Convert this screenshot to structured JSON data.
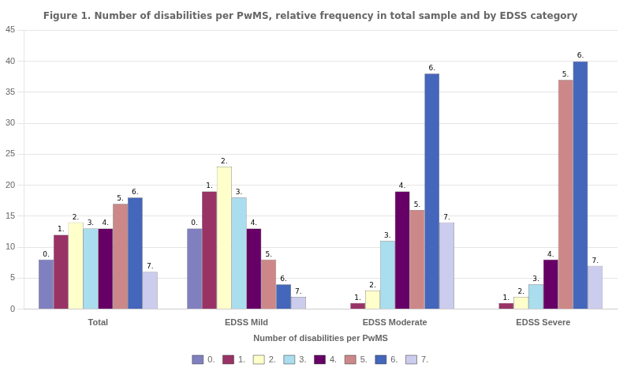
{
  "chart_data": {
    "type": "bar",
    "title": "Figure 1. Number of disabilities per PwMS, relative frequency in total sample and by EDSS category",
    "xlabel": "Number of disabilities per PwMS",
    "categories": [
      "Total",
      "EDSS Mild",
      "EDSS Moderate",
      "EDSS Severe"
    ],
    "series": [
      {
        "name": "0.",
        "color": "#8080c0",
        "values": [
          8,
          13,
          0,
          0
        ]
      },
      {
        "name": "1.",
        "color": "#993366",
        "values": [
          12,
          19,
          1,
          1
        ]
      },
      {
        "name": "2.",
        "color": "#ffffcc",
        "values": [
          14,
          23,
          3,
          2
        ]
      },
      {
        "name": "3.",
        "color": "#aaddee",
        "values": [
          13,
          18,
          11,
          4
        ]
      },
      {
        "name": "4.",
        "color": "#660066",
        "values": [
          13,
          13,
          19,
          8
        ]
      },
      {
        "name": "5.",
        "color": "#cc8888",
        "values": [
          17,
          8,
          16,
          37
        ]
      },
      {
        "name": "6.",
        "color": "#4466bb",
        "values": [
          18,
          4,
          38,
          40
        ]
      },
      {
        "name": "7.",
        "color": "#ccccee",
        "values": [
          6,
          2,
          14,
          7
        ]
      }
    ],
    "annotations": [
      {
        "text": "0.",
        "x": "Total",
        "series": "0."
      },
      {
        "text": "0.",
        "x": "EDSS Mild",
        "series": "0."
      },
      {
        "text": "1.",
        "x": "Total",
        "series": "1."
      },
      {
        "text": "1.",
        "x": "EDSS Mild",
        "series": "1."
      },
      {
        "text": "1.",
        "x": "EDSS Moderate",
        "series": "1."
      },
      {
        "text": "1.",
        "x": "EDSS Severe",
        "series": "1."
      },
      {
        "text": "2.",
        "x": "Total",
        "series": "2."
      },
      {
        "text": "2.",
        "x": "EDSS Mild",
        "series": "2."
      },
      {
        "text": "2.",
        "x": "EDSS Moderate",
        "series": "2."
      },
      {
        "text": "2.",
        "x": "EDSS Severe",
        "series": "2."
      },
      {
        "text": "3.",
        "x": "Total",
        "series": "3."
      },
      {
        "text": "3.",
        "x": "EDSS Mild",
        "series": "3."
      },
      {
        "text": "3.",
        "x": "EDSS Moderate",
        "series": "3."
      },
      {
        "text": "3.",
        "x": "EDSS Severe",
        "series": "3."
      },
      {
        "text": "4.",
        "x": "Total",
        "series": "4."
      },
      {
        "text": "4.",
        "x": "EDSS Mild",
        "series": "4."
      },
      {
        "text": "4.",
        "x": "EDSS Moderate",
        "series": "4."
      },
      {
        "text": "4.",
        "x": "EDSS Severe",
        "series": "4."
      },
      {
        "text": "5.",
        "x": "Total",
        "series": "5."
      },
      {
        "text": "5.",
        "x": "EDSS Mild",
        "series": "5."
      },
      {
        "text": "5.",
        "x": "EDSS Moderate",
        "series": "5."
      },
      {
        "text": "5.",
        "x": "EDSS Severe",
        "series": "5."
      },
      {
        "text": "6.",
        "x": "Total",
        "series": "6."
      },
      {
        "text": "6.",
        "x": "EDSS Mild",
        "series": "6."
      },
      {
        "text": "6.",
        "x": "EDSS Moderate",
        "series": "6."
      },
      {
        "text": "6.",
        "x": "EDSS Severe",
        "series": "6."
      },
      {
        "text": "7.",
        "x": "Total",
        "series": "7."
      },
      {
        "text": "7.",
        "x": "EDSS Mild",
        "series": "7."
      },
      {
        "text": "7.",
        "x": "EDSS Moderate",
        "series": "7."
      },
      {
        "text": "7.",
        "x": "EDSS Severe",
        "series": "7."
      }
    ],
    "ylim": [
      0,
      45
    ],
    "yticks": [
      0,
      5,
      10,
      15,
      20,
      25,
      30,
      35,
      40,
      45
    ],
    "grid": true,
    "legend": "bottom"
  }
}
